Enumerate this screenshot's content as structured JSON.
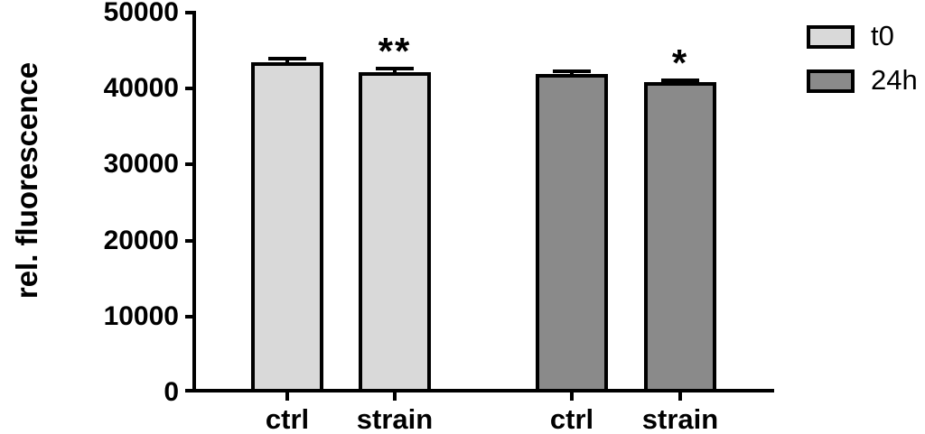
{
  "chart_data": {
    "type": "bar",
    "title": "",
    "xlabel": "",
    "ylabel": "rel. fluorescence",
    "ylim": [
      0,
      50000
    ],
    "yticks": [
      0,
      10000,
      20000,
      30000,
      40000,
      50000
    ],
    "ytick_labels": [
      "0",
      "10000",
      "20000",
      "30000",
      "40000",
      "50000"
    ],
    "categories": [
      "ctrl",
      "strain"
    ],
    "series": [
      {
        "name": "t0",
        "color": "#d9d9d9",
        "values": [
          43500,
          42200
        ],
        "sem": [
          400,
          400
        ],
        "significance": [
          "",
          "**"
        ]
      },
      {
        "name": "24h",
        "color": "#8a8a8a",
        "values": [
          41900,
          40800
        ],
        "sem": [
          400,
          350
        ],
        "significance": [
          "",
          "*"
        ]
      }
    ],
    "legend": [
      {
        "label": "t0",
        "color": "#d9d9d9"
      },
      {
        "label": "24h",
        "color": "#8a8a8a"
      }
    ],
    "legend_position": "top-right",
    "grid": false,
    "bar_border_color": "#000000",
    "axis_color": "#000000",
    "background_color": "#ffffff"
  }
}
